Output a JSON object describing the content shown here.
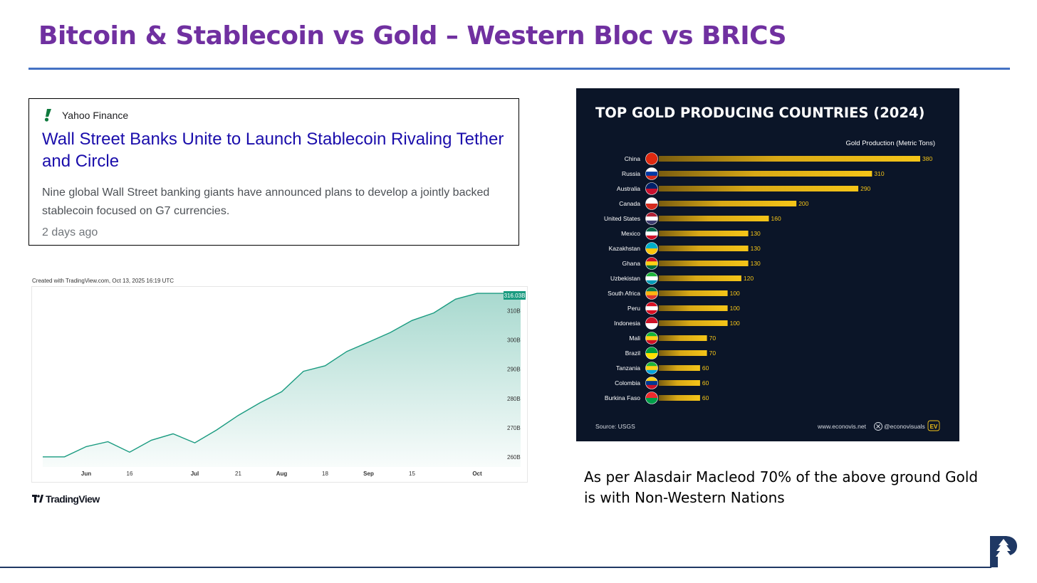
{
  "slide": {
    "title": "Bitcoin & Stablecoin vs Gold – Western Bloc vs BRICS",
    "note": "As per Alasdair Macleod 70% of the above ground Gold is with Non-Western Nations"
  },
  "news": {
    "source": "Yahoo Finance",
    "headline": "Wall Street Banks Unite to Launch Stablecoin Rivaling Tether and Circle",
    "summary": "Nine global Wall Street banking giants have announced plans to develop a jointly backed stablecoin focused on G7 currencies.",
    "time": "2 days ago"
  },
  "colors": {
    "title": "#7030a0",
    "rule": "#4472c4",
    "headline": "#1a0dab",
    "tv_line": "#1a9b80",
    "gold_bg": "#0b1528",
    "gold_bar": "#f5c518"
  },
  "chart_data": [
    {
      "type": "area",
      "created": "Created with TradingView.com, Oct 13, 2025 16:19 UTC",
      "brand": "TradingView",
      "last_value_label": "316.03B",
      "ylim": [
        258,
        317
      ],
      "y_ticks": [
        {
          "value": 310,
          "label": "310B"
        },
        {
          "value": 300,
          "label": "300B"
        },
        {
          "value": 290,
          "label": "290B"
        },
        {
          "value": 280,
          "label": "280B"
        },
        {
          "value": 270,
          "label": "270B"
        },
        {
          "value": 260,
          "label": "260B"
        }
      ],
      "x_ticks": [
        {
          "index": 2,
          "label": "Jun",
          "bold": true
        },
        {
          "index": 4,
          "label": "16",
          "bold": false
        },
        {
          "index": 7,
          "label": "Jul",
          "bold": true
        },
        {
          "index": 9,
          "label": "21",
          "bold": false
        },
        {
          "index": 11,
          "label": "Aug",
          "bold": true
        },
        {
          "index": 13,
          "label": "18",
          "bold": false
        },
        {
          "index": 15,
          "label": "Sep",
          "bold": true
        },
        {
          "index": 17,
          "label": "15",
          "bold": false
        },
        {
          "index": 20,
          "label": "Oct",
          "bold": true
        }
      ],
      "values": [
        260.0,
        260.0,
        263.5,
        265.2,
        261.6,
        265.7,
        267.9,
        264.8,
        269.2,
        274.2,
        278.5,
        282.3,
        289.3,
        291.2,
        296.1,
        299.3,
        302.6,
        306.7,
        309.3,
        314.0,
        316.0,
        316.0,
        316.03
      ]
    },
    {
      "type": "bar",
      "orientation": "horizontal",
      "title": "TOP GOLD PRODUCING COUNTRIES (2024)",
      "value_axis_label": "Gold Production (Metric Tons)",
      "source": "Source: USGS",
      "website": "www.econovis.net",
      "handle": "@econovisuals",
      "brand_mark": "EV",
      "xlim": [
        0,
        380
      ],
      "categories": [
        "China",
        "Russia",
        "Australia",
        "Canada",
        "United States",
        "Mexico",
        "Kazakhstan",
        "Ghana",
        "Uzbekistan",
        "South Africa",
        "Peru",
        "Indonesia",
        "Mali",
        "Brazil",
        "Tanzania",
        "Colombia",
        "Burkina Faso"
      ],
      "values": [
        380,
        310,
        290,
        200,
        160,
        130,
        130,
        130,
        120,
        100,
        100,
        100,
        70,
        70,
        60,
        60,
        60
      ]
    }
  ]
}
